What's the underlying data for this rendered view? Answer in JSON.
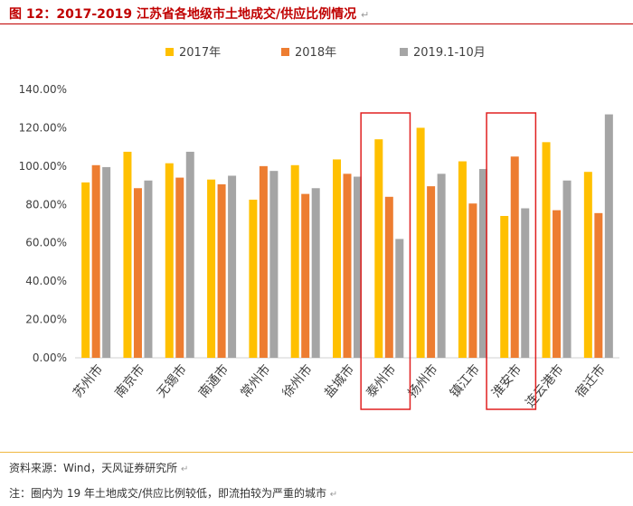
{
  "header": {
    "title": "图 12：2017-2019 江苏省各地级市土地成交/供应比例情况",
    "return_mark": "↵"
  },
  "chart_data": {
    "type": "bar",
    "categories": [
      "苏州市",
      "南京市",
      "无锡市",
      "南通市",
      "常州市",
      "徐州市",
      "盐城市",
      "泰州市",
      "扬州市",
      "镇江市",
      "淮安市",
      "连云港市",
      "宿迁市"
    ],
    "series": [
      {
        "name": "2017年",
        "color": "#FFC000",
        "values": [
          91.5,
          107.5,
          101.5,
          93,
          82.5,
          100.5,
          103.5,
          114,
          120,
          102.5,
          74,
          112.5,
          97
        ]
      },
      {
        "name": "2018年",
        "color": "#ED7D31",
        "values": [
          100.5,
          88.5,
          94,
          90.5,
          100,
          85.5,
          96,
          84,
          89.5,
          80.5,
          105,
          77,
          75.5
        ]
      },
      {
        "name": "2019.1-10月",
        "color": "#A5A5A5",
        "values": [
          99.5,
          92.5,
          107.5,
          95,
          97.5,
          88.5,
          94.5,
          62,
          96,
          98.5,
          78,
          92.5,
          127
        ]
      }
    ],
    "yticks": [
      "0.00%",
      "20.00%",
      "40.00%",
      "60.00%",
      "80.00%",
      "100.00%",
      "120.00%",
      "140.00%"
    ],
    "ylim": [
      0,
      140
    ],
    "unit": "%",
    "highlighted_categories": [
      "泰州市",
      "淮安市"
    ],
    "highlight_color": "#E02020"
  },
  "footer": {
    "source": "资料来源：Wind，天风证券研究所",
    "note": "注：圈内为 19 年土地成交/供应比例较低，即流拍较为严重的城市",
    "return_mark": "↵"
  }
}
